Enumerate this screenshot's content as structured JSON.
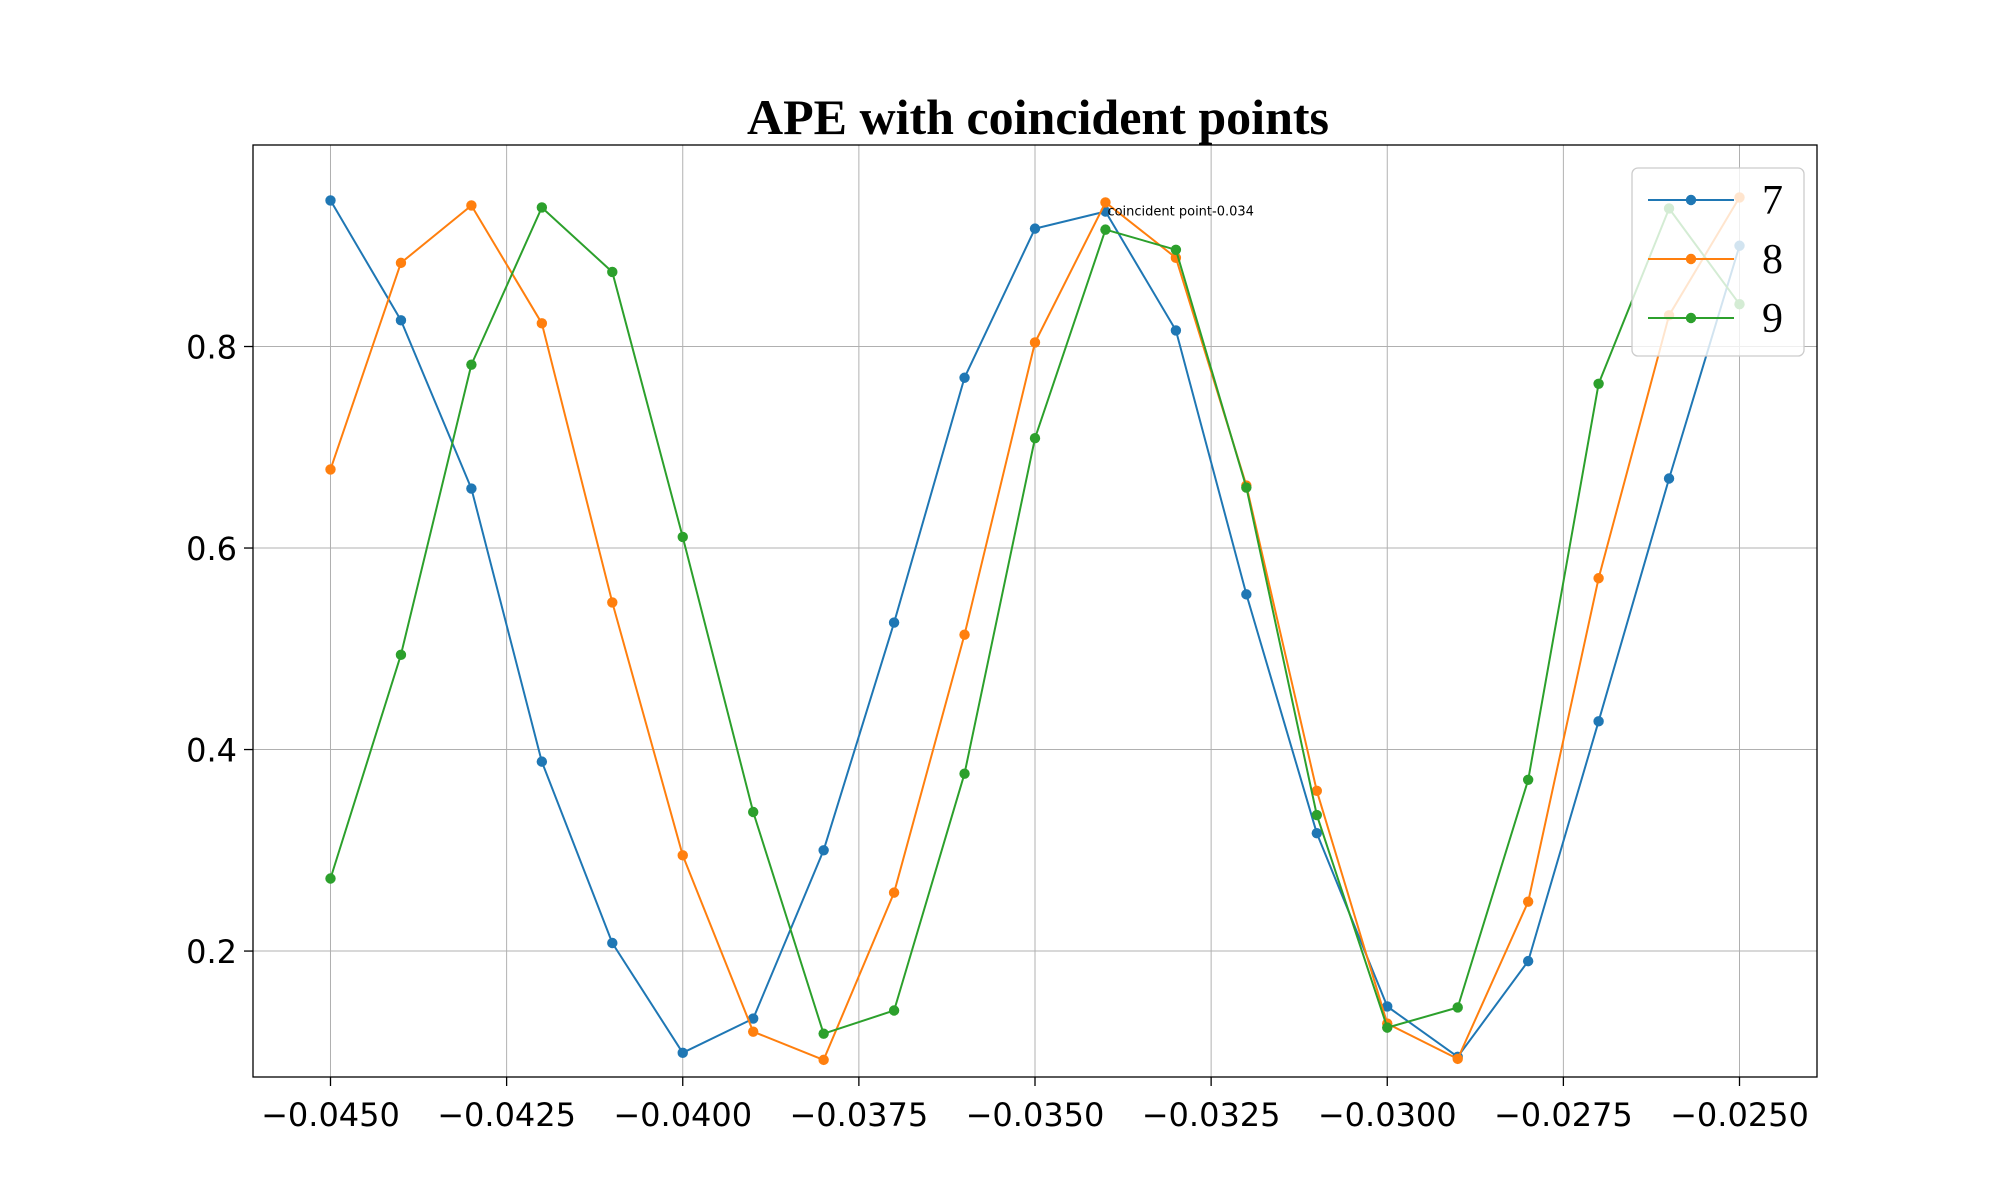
{
  "chart_data": {
    "type": "line",
    "title": "APE with coincident points",
    "xlabel": "",
    "ylabel": "",
    "x": [
      -0.045,
      -0.044,
      -0.043,
      -0.042,
      -0.041,
      -0.04,
      -0.039,
      -0.038,
      -0.037,
      -0.036,
      -0.035,
      -0.034,
      -0.033,
      -0.032,
      -0.031,
      -0.03,
      -0.029,
      -0.028,
      -0.027,
      -0.026,
      -0.025
    ],
    "xlim": [
      -0.0461,
      -0.0239
    ],
    "ylim": [
      0.075,
      1.0
    ],
    "xticks": [
      -0.045,
      -0.0425,
      -0.04,
      -0.0375,
      -0.035,
      -0.0325,
      -0.03,
      -0.0275,
      -0.025
    ],
    "xtick_labels": [
      "−0.0450",
      "−0.0425",
      "−0.0400",
      "−0.0375",
      "−0.0350",
      "−0.0325",
      "−0.0300",
      "−0.0275",
      "−0.0250"
    ],
    "yticks": [
      0.2,
      0.4,
      0.6,
      0.8
    ],
    "ytick_labels": [
      "0.2",
      "0.4",
      "0.6",
      "0.8"
    ],
    "grid": true,
    "legend_position": "top-right",
    "series": [
      {
        "name": "7",
        "color": "#1f77b4",
        "values": [
          0.945,
          0.826,
          0.659,
          0.388,
          0.208,
          0.099,
          0.133,
          0.3,
          0.526,
          0.769,
          0.917,
          0.934,
          0.816,
          0.554,
          0.317,
          0.145,
          0.095,
          0.19,
          0.428,
          0.669,
          0.9
        ]
      },
      {
        "name": "8",
        "color": "#ff7f0e",
        "values": [
          0.678,
          0.883,
          0.94,
          0.823,
          0.546,
          0.295,
          0.12,
          0.092,
          0.258,
          0.514,
          0.804,
          0.943,
          0.888,
          0.662,
          0.359,
          0.128,
          0.093,
          0.249,
          0.57,
          0.831,
          0.948
        ]
      },
      {
        "name": "9",
        "color": "#2ca02c",
        "values": [
          0.272,
          0.494,
          0.782,
          0.938,
          0.874,
          0.611,
          0.338,
          0.118,
          0.141,
          0.376,
          0.709,
          0.916,
          0.896,
          0.66,
          0.335,
          0.124,
          0.144,
          0.37,
          0.763,
          0.937,
          0.842
        ]
      }
    ],
    "annotations": [
      {
        "text": "coincident point-0.034",
        "x": -0.034,
        "y": 0.934
      }
    ]
  }
}
